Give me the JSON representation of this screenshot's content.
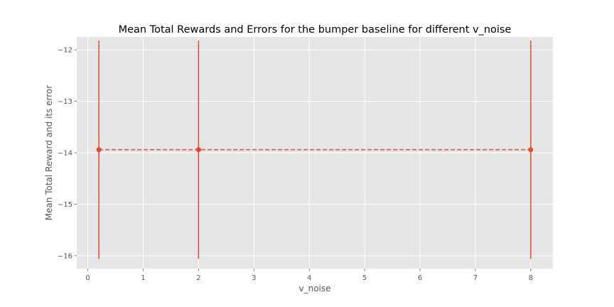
{
  "chart_data": {
    "type": "line",
    "title": "Mean Total Rewards and Errors for the bumper baseline for different v_noise",
    "xlabel": "v_noise",
    "ylabel": "Mean Total Reward and its error",
    "xlim": [
      -0.2,
      8.4
    ],
    "ylim": [
      -16.25,
      -11.75
    ],
    "x_ticks": [
      0,
      1,
      2,
      3,
      4,
      5,
      6,
      7,
      8
    ],
    "y_ticks": [
      -12,
      -13,
      -14,
      -15,
      -16
    ],
    "grid": true,
    "series": [
      {
        "x": [
          0.2,
          2,
          8
        ],
        "y": [
          -13.94,
          -13.94,
          -13.94
        ],
        "error": [
          2.12,
          2.12,
          2.12
        ],
        "line_style": "dashed",
        "marker": "circle",
        "color": "#E24A33"
      }
    ],
    "colors": {
      "background": "#E5E5E5",
      "grid": "#FFFFFF",
      "series": "#E24A33"
    }
  }
}
